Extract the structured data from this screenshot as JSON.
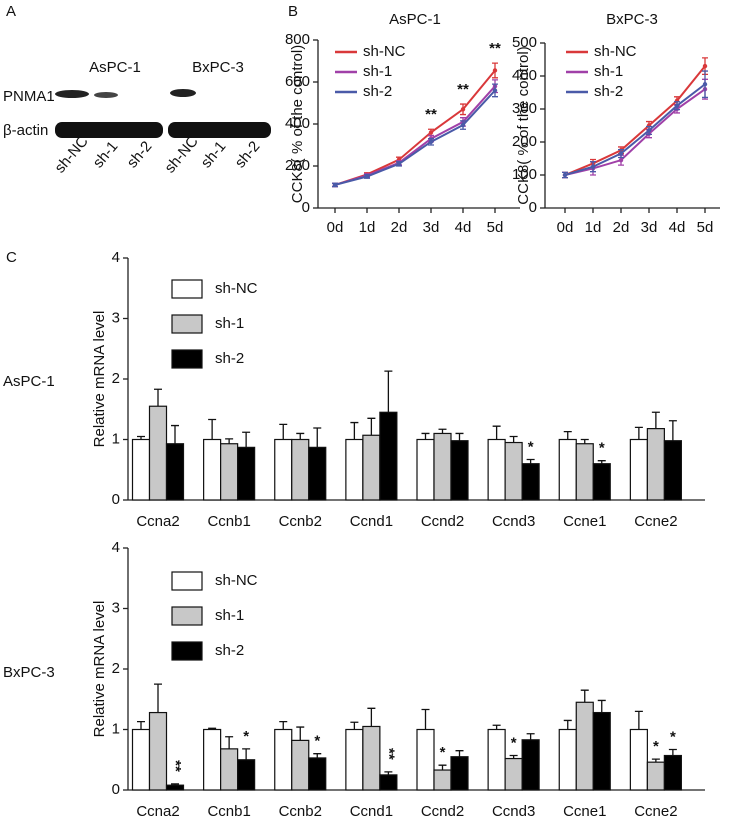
{
  "panels": [
    "A",
    "B",
    "C"
  ],
  "blot": {
    "cell_lines": [
      "AsPC-1",
      "BxPC-3"
    ],
    "rows": [
      "PNMA1",
      "β-actin"
    ],
    "lanes": [
      "sh-NC",
      "sh-1",
      "sh-2",
      "sh-NC",
      "sh-1",
      "sh-2"
    ]
  },
  "chart_data": [
    {
      "type": "line",
      "title": "AsPC-1",
      "y_label": "CCK8( % of the control)",
      "categories": [
        "0d",
        "1d",
        "2d",
        "3d",
        "4d",
        "5d"
      ],
      "series": [
        {
          "name": "sh-NC",
          "color": "#d9383a",
          "values": [
            110,
            160,
            230,
            360,
            470,
            655
          ],
          "errors": [
            8,
            8,
            12,
            15,
            25,
            35
          ]
        },
        {
          "name": "sh-1",
          "color": "#a040a8",
          "values": [
            110,
            155,
            215,
            330,
            410,
            580
          ],
          "errors": [
            8,
            8,
            10,
            15,
            20,
            30
          ]
        },
        {
          "name": "sh-2",
          "color": "#4a5aa8",
          "values": [
            110,
            150,
            210,
            315,
            395,
            560
          ],
          "errors": [
            8,
            8,
            10,
            15,
            20,
            30
          ]
        }
      ],
      "annotations": [
        {
          "text": "**",
          "category": "3d"
        },
        {
          "text": "**",
          "category": "4d"
        },
        {
          "text": "**",
          "category": "5d"
        }
      ],
      "ylim": [
        0,
        800
      ],
      "yticks": [
        0,
        200,
        400,
        600,
        800
      ]
    },
    {
      "type": "line",
      "title": "BxPC-3",
      "y_label": "CCK8( % of the control)",
      "categories": [
        "0d",
        "1d",
        "2d",
        "3d",
        "4d",
        "5d"
      ],
      "series": [
        {
          "name": "sh-NC",
          "color": "#d9383a",
          "values": [
            100,
            135,
            175,
            250,
            325,
            430
          ],
          "errors": [
            8,
            12,
            10,
            12,
            12,
            25
          ]
        },
        {
          "name": "sh-1",
          "color": "#a040a8",
          "values": [
            100,
            120,
            145,
            225,
            300,
            360
          ],
          "errors": [
            8,
            20,
            15,
            12,
            12,
            30
          ]
        },
        {
          "name": "sh-2",
          "color": "#4a5aa8",
          "values": [
            100,
            125,
            165,
            235,
            310,
            375
          ],
          "errors": [
            8,
            15,
            12,
            12,
            12,
            40
          ]
        }
      ],
      "ylim": [
        0,
        500
      ],
      "yticks": [
        0,
        100,
        200,
        300,
        400,
        500
      ]
    },
    {
      "type": "bar",
      "side_label": "AsPC-1",
      "y_label": "Relative mRNA level",
      "categories": [
        "Ccna2",
        "Ccnb1",
        "Ccnb2",
        "Ccnd1",
        "Ccnd2",
        "Ccnd3",
        "Ccne1",
        "Ccne2"
      ],
      "series": [
        {
          "name": "sh-NC",
          "color": "#ffffff",
          "values": [
            1,
            1,
            1,
            1,
            1,
            1,
            1,
            1
          ],
          "errors": [
            0.05,
            0.33,
            0.25,
            0.28,
            0.1,
            0.22,
            0.13,
            0.2
          ]
        },
        {
          "name": "sh-1",
          "color": "#c8c8c8",
          "values": [
            1.55,
            0.93,
            1,
            1.07,
            1.1,
            0.95,
            0.93,
            1.18
          ],
          "errors": [
            0.28,
            0.08,
            0.1,
            0.28,
            0.07,
            0.1,
            0.07,
            0.27
          ]
        },
        {
          "name": "sh-2",
          "color": "#000000",
          "values": [
            0.93,
            0.87,
            0.87,
            1.45,
            0.98,
            0.6,
            0.6,
            0.98
          ],
          "errors": [
            0.3,
            0.25,
            0.32,
            0.68,
            0.12,
            0.07,
            0.05,
            0.33
          ]
        }
      ],
      "annotations": [
        {
          "text": "*",
          "category": "Ccnd3",
          "series": "sh-2"
        },
        {
          "text": "*",
          "category": "Ccne1",
          "series": "sh-2"
        }
      ],
      "ylim": [
        0,
        4
      ],
      "yticks": [
        0,
        1,
        2,
        3,
        4
      ]
    },
    {
      "type": "bar",
      "side_label": "BxPC-3",
      "y_label": "Relative mRNA level",
      "categories": [
        "Ccna2",
        "Ccnb1",
        "Ccnb2",
        "Ccnd1",
        "Ccnd2",
        "Ccnd3",
        "Ccne1",
        "Ccne2"
      ],
      "series": [
        {
          "name": "sh-NC",
          "color": "#ffffff",
          "values": [
            1,
            1,
            1,
            1,
            1,
            1,
            1,
            1
          ],
          "errors": [
            0.13,
            0.02,
            0.13,
            0.12,
            0.33,
            0.07,
            0.15,
            0.3
          ]
        },
        {
          "name": "sh-1",
          "color": "#c8c8c8",
          "values": [
            1.28,
            0.68,
            0.82,
            1.05,
            0.33,
            0.52,
            1.45,
            0.46
          ],
          "errors": [
            0.47,
            0.2,
            0.22,
            0.3,
            0.08,
            0.05,
            0.2,
            0.05
          ]
        },
        {
          "name": "sh-2",
          "color": "#000000",
          "values": [
            0.08,
            0.5,
            0.53,
            0.25,
            0.55,
            0.83,
            1.28,
            0.57
          ],
          "errors": [
            0.02,
            0.18,
            0.07,
            0.05,
            0.1,
            0.1,
            0.2,
            0.1
          ]
        }
      ],
      "annotations": [
        {
          "text": "**",
          "category": "Ccna2",
          "series": "sh-2",
          "vertical": true
        },
        {
          "text": "*",
          "category": "Ccnb1",
          "series": "sh-2"
        },
        {
          "text": "*",
          "category": "Ccnb2",
          "series": "sh-2"
        },
        {
          "text": "**",
          "category": "Ccnd1",
          "series": "sh-2",
          "vertical": true
        },
        {
          "text": "*",
          "category": "Ccnd2",
          "series": "sh-1"
        },
        {
          "text": "*",
          "category": "Ccnd3",
          "series": "sh-1"
        },
        {
          "text": "*",
          "category": "Ccne2",
          "series": "sh-1"
        },
        {
          "text": "*",
          "category": "Ccne2",
          "series": "sh-2"
        }
      ],
      "ylim": [
        0,
        4
      ],
      "yticks": [
        0,
        1,
        2,
        3,
        4
      ]
    }
  ]
}
